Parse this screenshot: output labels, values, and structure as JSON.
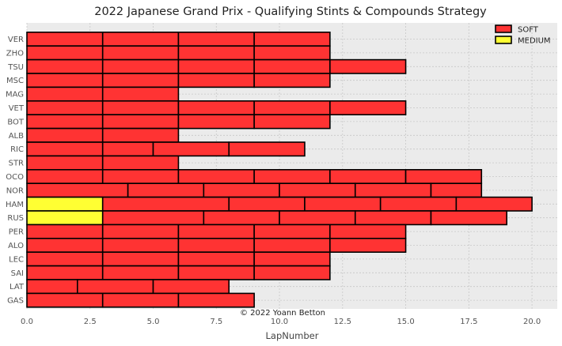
{
  "chart_data": {
    "type": "bar",
    "orientation": "horizontal-stacked",
    "title": "2022 Japanese Grand Prix - Qualifying Stints & Compounds Strategy",
    "xlabel": "LapNumber",
    "ylabel": "",
    "xlim": [
      0,
      21
    ],
    "xticks": [
      "0.0",
      "2.5",
      "5.0",
      "7.5",
      "10.0",
      "12.5",
      "15.0",
      "17.5",
      "20.0"
    ],
    "xtick_values": [
      0,
      2.5,
      5,
      7.5,
      10,
      12.5,
      15,
      17.5,
      20
    ],
    "grid": true,
    "legend_position": "top-right",
    "legend": [
      {
        "name": "SOFT",
        "color": "#ff3333"
      },
      {
        "name": "MEDIUM",
        "color": "#ffff33"
      }
    ],
    "compound_colors": {
      "SOFT": "#ff3333",
      "MEDIUM": "#ffff33"
    },
    "annotation": "© 2022 Yoann Betton",
    "drivers": [
      {
        "driver": "VER",
        "stints": [
          {
            "compound": "SOFT",
            "laps": 3
          },
          {
            "compound": "SOFT",
            "laps": 3
          },
          {
            "compound": "SOFT",
            "laps": 3
          },
          {
            "compound": "SOFT",
            "laps": 3
          }
        ]
      },
      {
        "driver": "ZHO",
        "stints": [
          {
            "compound": "SOFT",
            "laps": 3
          },
          {
            "compound": "SOFT",
            "laps": 3
          },
          {
            "compound": "SOFT",
            "laps": 3
          },
          {
            "compound": "SOFT",
            "laps": 3
          }
        ]
      },
      {
        "driver": "TSU",
        "stints": [
          {
            "compound": "SOFT",
            "laps": 3
          },
          {
            "compound": "SOFT",
            "laps": 3
          },
          {
            "compound": "SOFT",
            "laps": 3
          },
          {
            "compound": "SOFT",
            "laps": 3
          },
          {
            "compound": "SOFT",
            "laps": 3
          }
        ]
      },
      {
        "driver": "MSC",
        "stints": [
          {
            "compound": "SOFT",
            "laps": 3
          },
          {
            "compound": "SOFT",
            "laps": 3
          },
          {
            "compound": "SOFT",
            "laps": 3
          },
          {
            "compound": "SOFT",
            "laps": 3
          }
        ]
      },
      {
        "driver": "MAG",
        "stints": [
          {
            "compound": "SOFT",
            "laps": 3
          },
          {
            "compound": "SOFT",
            "laps": 3
          }
        ]
      },
      {
        "driver": "VET",
        "stints": [
          {
            "compound": "SOFT",
            "laps": 3
          },
          {
            "compound": "SOFT",
            "laps": 3
          },
          {
            "compound": "SOFT",
            "laps": 3
          },
          {
            "compound": "SOFT",
            "laps": 3
          },
          {
            "compound": "SOFT",
            "laps": 3
          }
        ]
      },
      {
        "driver": "BOT",
        "stints": [
          {
            "compound": "SOFT",
            "laps": 3
          },
          {
            "compound": "SOFT",
            "laps": 3
          },
          {
            "compound": "SOFT",
            "laps": 3
          },
          {
            "compound": "SOFT",
            "laps": 3
          }
        ]
      },
      {
        "driver": "ALB",
        "stints": [
          {
            "compound": "SOFT",
            "laps": 3
          },
          {
            "compound": "SOFT",
            "laps": 3
          }
        ]
      },
      {
        "driver": "RIC",
        "stints": [
          {
            "compound": "SOFT",
            "laps": 3
          },
          {
            "compound": "SOFT",
            "laps": 2
          },
          {
            "compound": "SOFT",
            "laps": 3
          },
          {
            "compound": "SOFT",
            "laps": 3
          }
        ]
      },
      {
        "driver": "STR",
        "stints": [
          {
            "compound": "SOFT",
            "laps": 3
          },
          {
            "compound": "SOFT",
            "laps": 3
          }
        ]
      },
      {
        "driver": "OCO",
        "stints": [
          {
            "compound": "SOFT",
            "laps": 3
          },
          {
            "compound": "SOFT",
            "laps": 3
          },
          {
            "compound": "SOFT",
            "laps": 3
          },
          {
            "compound": "SOFT",
            "laps": 3
          },
          {
            "compound": "SOFT",
            "laps": 3
          },
          {
            "compound": "SOFT",
            "laps": 3
          }
        ]
      },
      {
        "driver": "NOR",
        "stints": [
          {
            "compound": "SOFT",
            "laps": 4
          },
          {
            "compound": "SOFT",
            "laps": 3
          },
          {
            "compound": "SOFT",
            "laps": 3
          },
          {
            "compound": "SOFT",
            "laps": 3
          },
          {
            "compound": "SOFT",
            "laps": 3
          },
          {
            "compound": "SOFT",
            "laps": 2
          }
        ]
      },
      {
        "driver": "HAM",
        "stints": [
          {
            "compound": "MEDIUM",
            "laps": 3
          },
          {
            "compound": "SOFT",
            "laps": 5
          },
          {
            "compound": "SOFT",
            "laps": 3
          },
          {
            "compound": "SOFT",
            "laps": 3
          },
          {
            "compound": "SOFT",
            "laps": 3
          },
          {
            "compound": "SOFT",
            "laps": 3
          }
        ]
      },
      {
        "driver": "RUS",
        "stints": [
          {
            "compound": "MEDIUM",
            "laps": 3
          },
          {
            "compound": "SOFT",
            "laps": 4
          },
          {
            "compound": "SOFT",
            "laps": 3
          },
          {
            "compound": "SOFT",
            "laps": 3
          },
          {
            "compound": "SOFT",
            "laps": 3
          },
          {
            "compound": "SOFT",
            "laps": 3
          }
        ]
      },
      {
        "driver": "PER",
        "stints": [
          {
            "compound": "SOFT",
            "laps": 3
          },
          {
            "compound": "SOFT",
            "laps": 3
          },
          {
            "compound": "SOFT",
            "laps": 3
          },
          {
            "compound": "SOFT",
            "laps": 3
          },
          {
            "compound": "SOFT",
            "laps": 3
          }
        ]
      },
      {
        "driver": "ALO",
        "stints": [
          {
            "compound": "SOFT",
            "laps": 3
          },
          {
            "compound": "SOFT",
            "laps": 3
          },
          {
            "compound": "SOFT",
            "laps": 3
          },
          {
            "compound": "SOFT",
            "laps": 3
          },
          {
            "compound": "SOFT",
            "laps": 3
          }
        ]
      },
      {
        "driver": "LEC",
        "stints": [
          {
            "compound": "SOFT",
            "laps": 3
          },
          {
            "compound": "SOFT",
            "laps": 3
          },
          {
            "compound": "SOFT",
            "laps": 3
          },
          {
            "compound": "SOFT",
            "laps": 3
          }
        ]
      },
      {
        "driver": "SAI",
        "stints": [
          {
            "compound": "SOFT",
            "laps": 3
          },
          {
            "compound": "SOFT",
            "laps": 3
          },
          {
            "compound": "SOFT",
            "laps": 3
          },
          {
            "compound": "SOFT",
            "laps": 3
          }
        ]
      },
      {
        "driver": "LAT",
        "stints": [
          {
            "compound": "SOFT",
            "laps": 2
          },
          {
            "compound": "SOFT",
            "laps": 3
          },
          {
            "compound": "SOFT",
            "laps": 3
          }
        ]
      },
      {
        "driver": "GAS",
        "stints": [
          {
            "compound": "SOFT",
            "laps": 3
          },
          {
            "compound": "SOFT",
            "laps": 3
          },
          {
            "compound": "SOFT",
            "laps": 3
          }
        ]
      }
    ]
  }
}
